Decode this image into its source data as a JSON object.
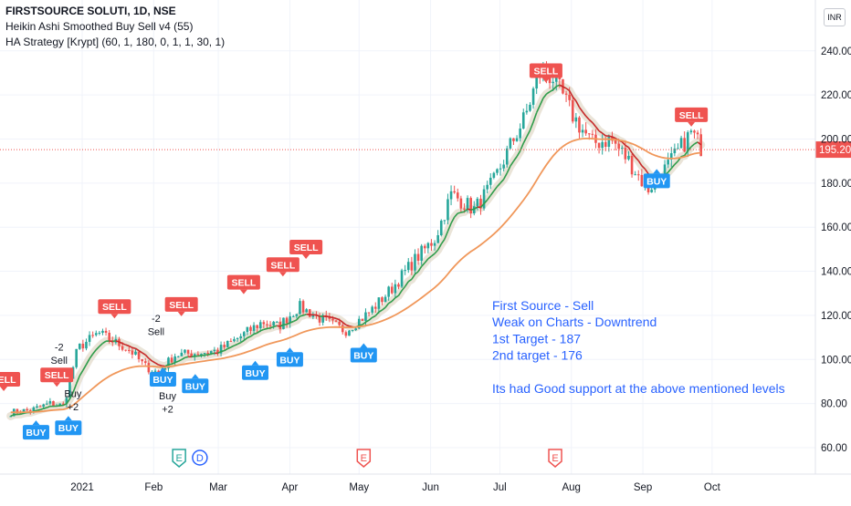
{
  "legend": {
    "symbol": "FIRSTSOURCE SOLUTI, 1D, NSE",
    "indicator1": "Heikin Ashi Smoothed Buy Sell v4  (55)",
    "indicator2": "HA Strategy [Krypt] (60, 1, 180, 0, 1, 1, 30, 1)"
  },
  "currency_badge": "INR",
  "colors": {
    "up": "#26a69a",
    "down": "#ef5350",
    "ma_orange": "#f0975a",
    "ma_trend": "#2e9c4a",
    "buy": "#2196f3",
    "sell": "#ef5350",
    "note": "#2962ff",
    "last_price": "#ef5350"
  },
  "chart_data": {
    "type": "candlestick",
    "x_ticks": [
      "2021",
      "Feb",
      "Mar",
      "Apr",
      "May",
      "Jun",
      "Jul",
      "Aug",
      "Sep",
      "Oct"
    ],
    "y_ticks": [
      "60.00",
      "80.00",
      "100.00",
      "120.00",
      "140.00",
      "160.00",
      "180.00",
      "200.00",
      "220.00",
      "240.00"
    ],
    "ylim": [
      50,
      260
    ],
    "last_price": "195.20",
    "grid": true,
    "price_path": [
      {
        "date": "2020-12-01",
        "price": 76
      },
      {
        "date": "2020-12-10",
        "price": 77
      },
      {
        "date": "2020-12-18",
        "price": 80
      },
      {
        "date": "2020-12-24",
        "price": 79
      },
      {
        "date": "2020-12-30",
        "price": 105
      },
      {
        "date": "2021-01-08",
        "price": 112
      },
      {
        "date": "2021-01-15",
        "price": 108
      },
      {
        "date": "2021-01-22",
        "price": 104
      },
      {
        "date": "2021-01-28",
        "price": 97
      },
      {
        "date": "2021-02-03",
        "price": 94
      },
      {
        "date": "2021-02-10",
        "price": 102
      },
      {
        "date": "2021-02-20",
        "price": 103
      },
      {
        "date": "2021-03-01",
        "price": 104
      },
      {
        "date": "2021-03-10",
        "price": 110
      },
      {
        "date": "2021-03-20",
        "price": 117
      },
      {
        "date": "2021-03-27",
        "price": 115
      },
      {
        "date": "2021-04-05",
        "price": 124
      },
      {
        "date": "2021-04-15",
        "price": 118
      },
      {
        "date": "2021-04-25",
        "price": 113
      },
      {
        "date": "2021-05-05",
        "price": 121
      },
      {
        "date": "2021-05-15",
        "price": 132
      },
      {
        "date": "2021-05-25",
        "price": 145
      },
      {
        "date": "2021-06-03",
        "price": 155
      },
      {
        "date": "2021-06-10",
        "price": 175
      },
      {
        "date": "2021-06-20",
        "price": 168
      },
      {
        "date": "2021-06-28",
        "price": 180
      },
      {
        "date": "2021-07-06",
        "price": 198
      },
      {
        "date": "2021-07-12",
        "price": 210
      },
      {
        "date": "2021-07-18",
        "price": 230
      },
      {
        "date": "2021-07-24",
        "price": 228
      },
      {
        "date": "2021-08-02",
        "price": 210
      },
      {
        "date": "2021-08-10",
        "price": 198
      },
      {
        "date": "2021-08-18",
        "price": 200
      },
      {
        "date": "2021-08-26",
        "price": 190
      },
      {
        "date": "2021-09-03",
        "price": 177
      },
      {
        "date": "2021-09-12",
        "price": 188
      },
      {
        "date": "2021-09-22",
        "price": 203
      },
      {
        "date": "2021-09-27",
        "price": 195
      }
    ],
    "signals": [
      {
        "label": "SELL",
        "type": "sell",
        "date": "2020-11-28",
        "price": 91
      },
      {
        "label": "BUY",
        "type": "buy",
        "date": "2020-12-12",
        "price": 67
      },
      {
        "label": "SELL",
        "type": "sell",
        "date": "2020-12-21",
        "price": 93
      },
      {
        "label": "BUY",
        "type": "buy",
        "date": "2020-12-26",
        "price": 69
      },
      {
        "label": "SELL",
        "type": "sell",
        "date": "2021-01-15",
        "price": 124
      },
      {
        "label": "BUY",
        "type": "buy",
        "date": "2021-02-05",
        "price": 91
      },
      {
        "label": "SELL",
        "type": "sell",
        "date": "2021-02-13",
        "price": 125
      },
      {
        "label": "BUY",
        "type": "buy",
        "date": "2021-02-19",
        "price": 88
      },
      {
        "label": "SELL",
        "type": "sell",
        "date": "2021-03-12",
        "price": 135
      },
      {
        "label": "BUY",
        "type": "buy",
        "date": "2021-03-17",
        "price": 94
      },
      {
        "label": "SELL",
        "type": "sell",
        "date": "2021-03-29",
        "price": 143
      },
      {
        "label": "BUY",
        "type": "buy",
        "date": "2021-04-01",
        "price": 100
      },
      {
        "label": "SELL",
        "type": "sell",
        "date": "2021-04-08",
        "price": 151
      },
      {
        "label": "BUY",
        "type": "buy",
        "date": "2021-05-03",
        "price": 102
      },
      {
        "label": "SELL",
        "type": "sell",
        "date": "2021-07-21",
        "price": 231
      },
      {
        "label": "BUY",
        "type": "buy",
        "date": "2021-09-07",
        "price": 181
      },
      {
        "label": "SELL",
        "type": "sell",
        "date": "2021-09-22",
        "price": 211
      }
    ],
    "strategy_marks": [
      {
        "text": "-2",
        "date": "2020-12-22",
        "price": 104
      },
      {
        "text": "Sell",
        "date": "2020-12-22",
        "price": 98
      },
      {
        "text": "Buy",
        "date": "2020-12-28",
        "price": 83
      },
      {
        "text": "+2",
        "date": "2020-12-28",
        "price": 77
      },
      {
        "text": "-2",
        "date": "2021-02-02",
        "price": 117
      },
      {
        "text": "Sell",
        "date": "2021-02-02",
        "price": 111
      },
      {
        "text": "Buy",
        "date": "2021-02-07",
        "price": 82
      },
      {
        "text": "+2",
        "date": "2021-02-07",
        "price": 76
      }
    ],
    "events": [
      {
        "text": "E",
        "kind": "earnings-green",
        "date": "2021-02-12"
      },
      {
        "text": "D",
        "kind": "dividend-blue",
        "date": "2021-02-21"
      },
      {
        "text": "E",
        "kind": "earnings-red",
        "date": "2021-05-03"
      },
      {
        "text": "E",
        "kind": "earnings-red",
        "date": "2021-07-25"
      }
    ]
  },
  "note": {
    "lines": [
      "First Source - Sell",
      "Weak on Charts - Downtrend",
      "1st Target - 187",
      "2nd target - 176",
      "",
      "Its had Good support at the above mentioned levels"
    ]
  }
}
